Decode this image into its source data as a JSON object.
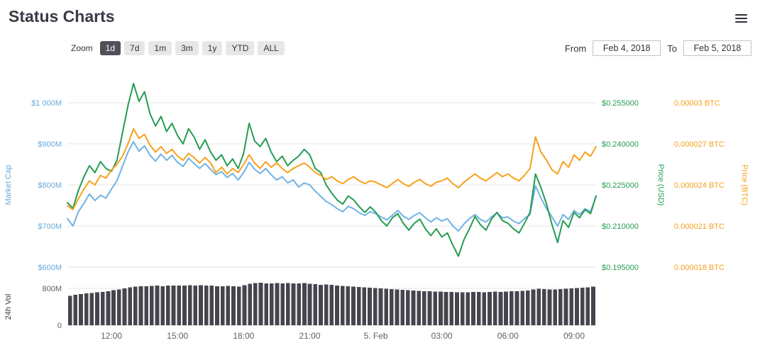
{
  "header": {
    "title": "Status Charts"
  },
  "toolbar": {
    "zoom_label": "Zoom",
    "zoom_buttons": [
      "1d",
      "7d",
      "1m",
      "3m",
      "1y",
      "YTD",
      "ALL"
    ],
    "selected_zoom": "1d",
    "from_label": "From",
    "from_value": "Feb 4, 2018",
    "to_label": "To",
    "to_value": "Feb 5, 2018"
  },
  "chart_data": {
    "type": "line",
    "title": "Status Charts",
    "legend": false,
    "grid": "horizontal-only",
    "x_start": "Feb 4, 10:00",
    "interval_minutes": 15,
    "x_ticks": [
      {
        "index": 8,
        "label": "12:00"
      },
      {
        "index": 20,
        "label": "15:00"
      },
      {
        "index": 32,
        "label": "18:00"
      },
      {
        "index": 44,
        "label": "21:00"
      },
      {
        "index": 56,
        "label": "5. Feb"
      },
      {
        "index": 68,
        "label": "03:00"
      },
      {
        "index": 80,
        "label": "06:00"
      },
      {
        "index": 92,
        "label": "09:00"
      }
    ],
    "axes": {
      "market_cap": {
        "title": "Market Cap",
        "unit": "$M",
        "color": "#67abdd",
        "min": 600,
        "max": 1000,
        "tick_labels": [
          "$600M",
          "$700M",
          "$800M",
          "$900M",
          "$1 000M"
        ]
      },
      "price_usd": {
        "title": "Price (USD)",
        "unit": "USD",
        "color": "#259c53",
        "min": 0.195,
        "max": 0.255,
        "tick_labels": [
          "$0.195000",
          "$0.210000",
          "$0.225000",
          "$0.240000",
          "$0.255000"
        ]
      },
      "price_btc": {
        "title": "Price (BTC)",
        "unit": "BTC",
        "color": "#f7a11d",
        "min": 1.8e-05,
        "max": 3e-05,
        "tick_labels": [
          "0.000018 BTC",
          "0.000021 BTC",
          "0.000024 BTC",
          "0.000027 BTC",
          "0.00003 BTC"
        ]
      },
      "volume": {
        "title": "24h Vol",
        "unit": "$M",
        "color": "#3c3c44",
        "min": 0,
        "grid_value": 800,
        "tick_labels": [
          "0",
          "800M"
        ]
      }
    },
    "series": [
      {
        "id": "market-cap",
        "name": "Market Cap",
        "axis": "market_cap",
        "color": "#70b3e4",
        "values": [
          718,
          700,
          735,
          755,
          778,
          762,
          775,
          768,
          790,
          810,
          845,
          880,
          905,
          882,
          895,
          872,
          858,
          875,
          860,
          872,
          855,
          845,
          865,
          852,
          840,
          852,
          838,
          825,
          832,
          818,
          828,
          812,
          830,
          855,
          838,
          828,
          840,
          825,
          812,
          820,
          805,
          812,
          795,
          805,
          800,
          785,
          772,
          760,
          752,
          742,
          735,
          748,
          742,
          732,
          726,
          735,
          730,
          722,
          715,
          726,
          738,
          724,
          716,
          726,
          732,
          720,
          710,
          720,
          712,
          718,
          700,
          688,
          705,
          718,
          728,
          716,
          710,
          722,
          732,
          720,
          722,
          712,
          706,
          718,
          728,
          798,
          768,
          742,
          722,
          700,
          728,
          716,
          738,
          728,
          742,
          735,
          772
        ]
      },
      {
        "id": "price-usd",
        "name": "Price (USD)",
        "axis": "price_usd",
        "color": "#259c53",
        "values": [
          0.2185,
          0.2165,
          0.223,
          0.228,
          0.232,
          0.2295,
          0.2335,
          0.231,
          0.23,
          0.234,
          0.244,
          0.254,
          0.262,
          0.2555,
          0.259,
          0.251,
          0.2465,
          0.25,
          0.2445,
          0.2475,
          0.243,
          0.24,
          0.2455,
          0.2425,
          0.238,
          0.2415,
          0.237,
          0.234,
          0.236,
          0.232,
          0.2345,
          0.231,
          0.2365,
          0.2475,
          0.241,
          0.239,
          0.242,
          0.237,
          0.2335,
          0.2355,
          0.232,
          0.234,
          0.2355,
          0.238,
          0.236,
          0.231,
          0.2295,
          0.225,
          0.222,
          0.2195,
          0.218,
          0.221,
          0.2195,
          0.217,
          0.215,
          0.217,
          0.215,
          0.212,
          0.21,
          0.213,
          0.2145,
          0.211,
          0.2085,
          0.211,
          0.2125,
          0.209,
          0.2065,
          0.209,
          0.206,
          0.2075,
          0.203,
          0.199,
          0.205,
          0.209,
          0.2135,
          0.2105,
          0.2085,
          0.2125,
          0.215,
          0.212,
          0.211,
          0.209,
          0.2075,
          0.211,
          0.215,
          0.229,
          0.224,
          0.218,
          0.2105,
          0.204,
          0.212,
          0.2095,
          0.215,
          0.213,
          0.216,
          0.2145,
          0.221
        ]
      },
      {
        "id": "price-btc",
        "name": "Price (BTC)",
        "axis": "price_btc",
        "color": "#f7a11d",
        "values": [
          2.25e-05,
          2.22e-05,
          2.3e-05,
          2.37e-05,
          2.43e-05,
          2.4e-05,
          2.47e-05,
          2.45e-05,
          2.51e-05,
          2.55e-05,
          2.61e-05,
          2.7e-05,
          2.81e-05,
          2.74e-05,
          2.77e-05,
          2.69e-05,
          2.64e-05,
          2.68e-05,
          2.63e-05,
          2.66e-05,
          2.61e-05,
          2.58e-05,
          2.63e-05,
          2.6e-05,
          2.56e-05,
          2.6e-05,
          2.56e-05,
          2.49e-05,
          2.53e-05,
          2.48e-05,
          2.52e-05,
          2.49e-05,
          2.55e-05,
          2.62e-05,
          2.56e-05,
          2.52e-05,
          2.57e-05,
          2.53e-05,
          2.56e-05,
          2.52e-05,
          2.49e-05,
          2.52e-05,
          2.54e-05,
          2.56e-05,
          2.53e-05,
          2.49e-05,
          2.47e-05,
          2.44e-05,
          2.46e-05,
          2.43e-05,
          2.41e-05,
          2.44e-05,
          2.46e-05,
          2.43e-05,
          2.41e-05,
          2.43e-05,
          2.42e-05,
          2.4e-05,
          2.38e-05,
          2.41e-05,
          2.44e-05,
          2.41e-05,
          2.39e-05,
          2.42e-05,
          2.44e-05,
          2.41e-05,
          2.39e-05,
          2.42e-05,
          2.43e-05,
          2.45e-05,
          2.41e-05,
          2.38e-05,
          2.42e-05,
          2.45e-05,
          2.48e-05,
          2.45e-05,
          2.43e-05,
          2.46e-05,
          2.49e-05,
          2.46e-05,
          2.48e-05,
          2.45e-05,
          2.43e-05,
          2.47e-05,
          2.52e-05,
          2.75e-05,
          2.64e-05,
          2.58e-05,
          2.51e-05,
          2.48e-05,
          2.57e-05,
          2.53e-05,
          2.62e-05,
          2.58e-05,
          2.64e-05,
          2.61e-05,
          2.68e-05
        ]
      }
    ],
    "volume_series": {
      "id": "volume",
      "name": "24h Vol",
      "color": "#45454d",
      "values": [
        640,
        660,
        675,
        690,
        700,
        715,
        720,
        735,
        760,
        780,
        800,
        820,
        840,
        850,
        845,
        855,
        860,
        850,
        858,
        862,
        865,
        858,
        868,
        862,
        870,
        865,
        858,
        850,
        845,
        852,
        846,
        840,
        870,
        900,
        915,
        920,
        910,
        905,
        912,
        908,
        915,
        910,
        905,
        912,
        900,
        890,
        880,
        885,
        875,
        865,
        855,
        848,
        840,
        830,
        822,
        815,
        808,
        800,
        790,
        782,
        775,
        768,
        760,
        755,
        748,
        742,
        738,
        732,
        728,
        724,
        720,
        715,
        712,
        718,
        725,
        720,
        715,
        722,
        728,
        724,
        730,
        735,
        740,
        748,
        755,
        780,
        790,
        785,
        780,
        775,
        785,
        790,
        800,
        810,
        818,
        825,
        835
      ]
    }
  }
}
